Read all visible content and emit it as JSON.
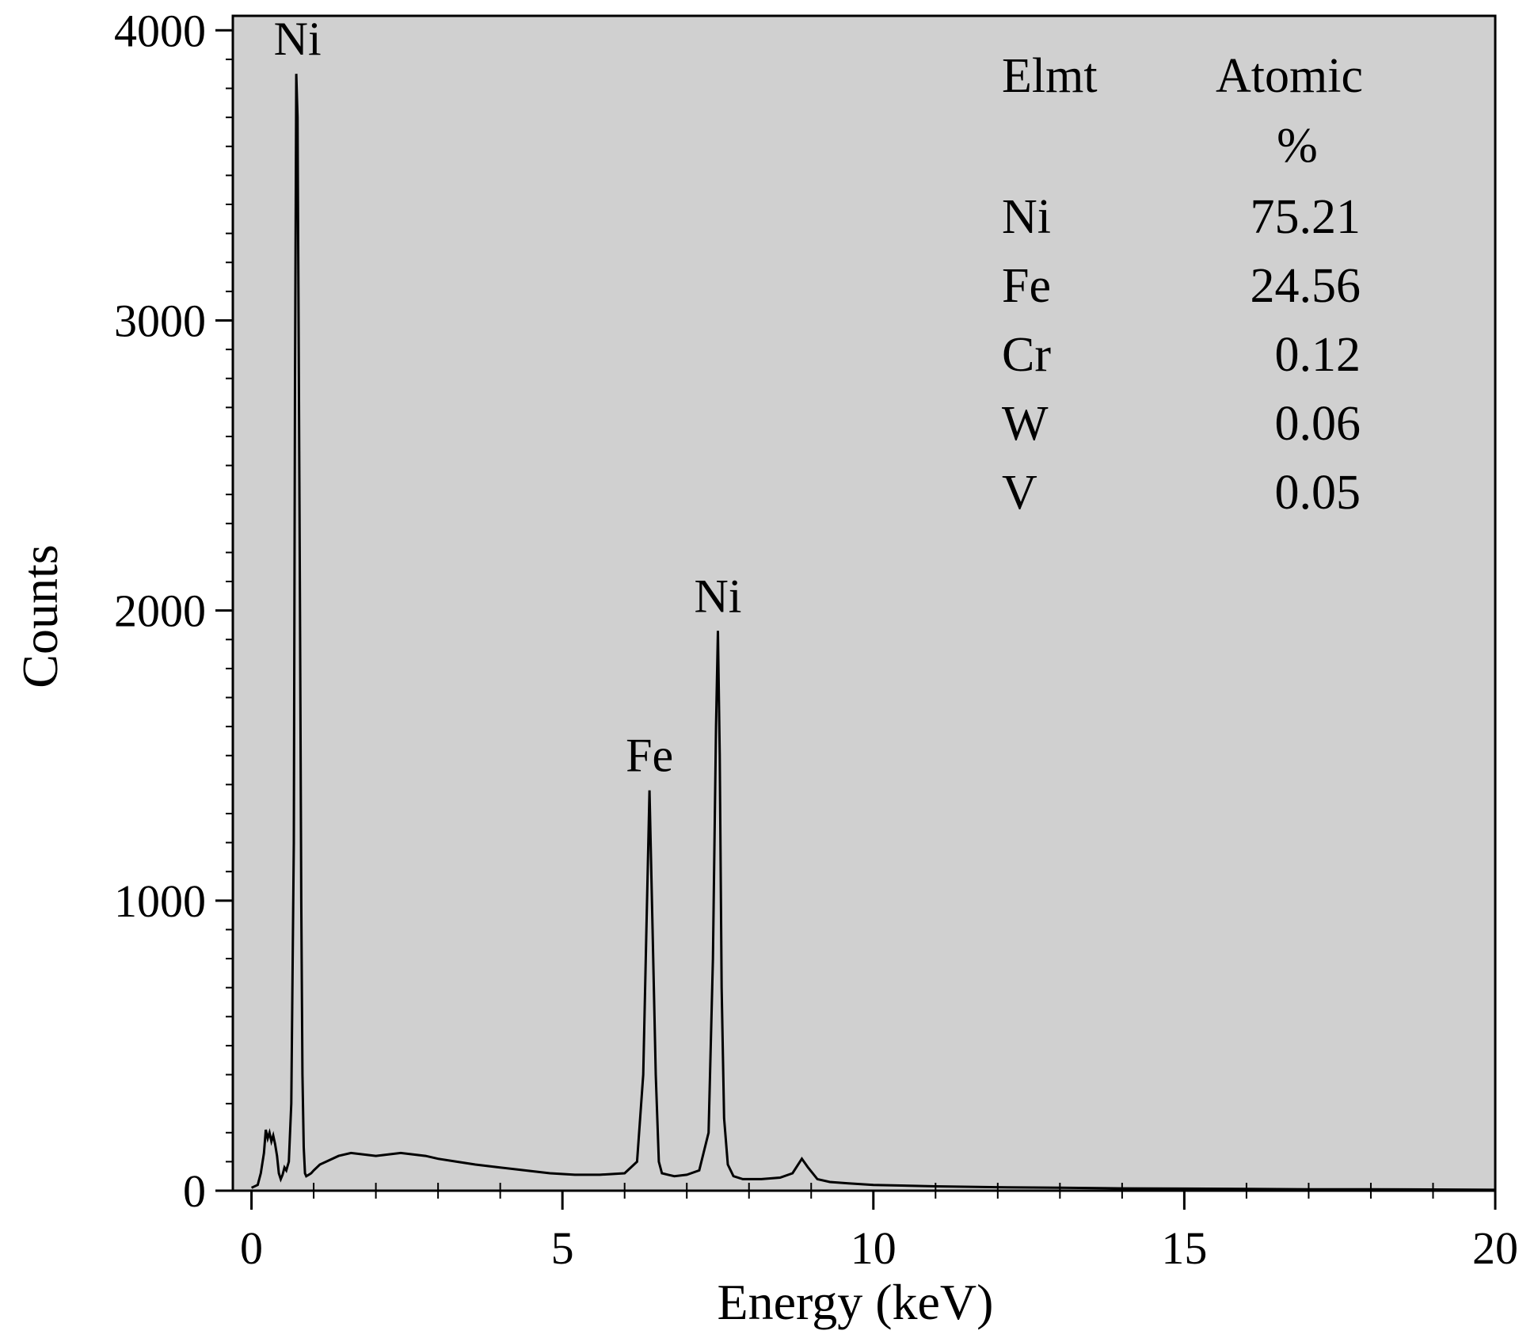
{
  "chart_data": {
    "type": "line",
    "xlabel": "Energy (keV)",
    "ylabel": "Counts",
    "xlim": [
      -0.3,
      20
    ],
    "ylim": [
      0,
      4050
    ],
    "x_ticks": [
      0,
      5,
      10,
      15,
      20
    ],
    "y_ticks": [
      0,
      1000,
      2000,
      3000,
      4000
    ],
    "x_tick_labels": [
      "0",
      "5",
      "10",
      "15",
      "20"
    ],
    "y_tick_labels": [
      "0",
      "1000",
      "2000",
      "3000",
      "4000"
    ],
    "plot_background": "#d0d0d0",
    "line_color": "#000000",
    "series": [
      {
        "x": [
          0.0,
          0.1,
          0.15,
          0.2,
          0.23,
          0.26,
          0.29,
          0.32,
          0.35,
          0.38,
          0.41,
          0.44,
          0.47,
          0.5,
          0.53,
          0.56,
          0.6,
          0.64,
          0.68,
          0.7,
          0.72,
          0.74,
          0.76,
          0.78,
          0.8,
          0.82,
          0.84,
          0.86,
          0.88,
          0.92,
          0.96,
          1.0,
          1.1,
          1.2,
          1.4,
          1.6,
          1.8,
          2.0,
          2.2,
          2.4,
          2.6,
          2.8,
          3.0,
          3.3,
          3.6,
          4.0,
          4.4,
          4.8,
          5.2,
          5.6,
          6.0,
          6.2,
          6.3,
          6.35,
          6.4,
          6.45,
          6.5,
          6.55,
          6.6,
          6.7,
          6.8,
          7.0,
          7.2,
          7.35,
          7.42,
          7.47,
          7.5,
          7.53,
          7.56,
          7.6,
          7.66,
          7.75,
          7.9,
          8.2,
          8.5,
          8.7,
          8.85,
          8.95,
          9.1,
          9.3,
          9.6,
          10.0,
          11.0,
          12.0,
          13.0,
          14.0,
          15.0,
          16.0,
          17.0,
          18.0,
          19.0,
          20.0
        ],
        "y": [
          10,
          20,
          60,
          130,
          210,
          180,
          200,
          170,
          190,
          160,
          120,
          60,
          40,
          55,
          80,
          70,
          100,
          300,
          1200,
          2800,
          3850,
          3700,
          2900,
          2000,
          1000,
          400,
          150,
          60,
          50,
          55,
          60,
          70,
          90,
          100,
          120,
          130,
          125,
          120,
          125,
          130,
          125,
          120,
          110,
          100,
          90,
          80,
          70,
          60,
          55,
          55,
          60,
          100,
          400,
          900,
          1380,
          900,
          400,
          100,
          60,
          55,
          50,
          55,
          70,
          200,
          800,
          1600,
          1930,
          1500,
          700,
          250,
          90,
          50,
          40,
          40,
          45,
          60,
          110,
          80,
          40,
          30,
          25,
          20,
          15,
          12,
          10,
          8,
          7,
          6,
          5,
          5,
          4,
          3
        ]
      }
    ],
    "peak_labels": [
      {
        "text": "Ni",
        "x": 0.74,
        "y": 3850
      },
      {
        "text": "Fe",
        "x": 6.4,
        "y": 1380
      },
      {
        "text": "Ni",
        "x": 7.5,
        "y": 1930
      }
    ],
    "table": {
      "headers": [
        "Elmt",
        "Atomic",
        "%"
      ],
      "rows": [
        [
          "Ni",
          "75.21"
        ],
        [
          "Fe",
          "24.56"
        ],
        [
          "Cr",
          "0.12"
        ],
        [
          "W",
          "0.06"
        ],
        [
          "V",
          "0.05"
        ]
      ]
    }
  }
}
